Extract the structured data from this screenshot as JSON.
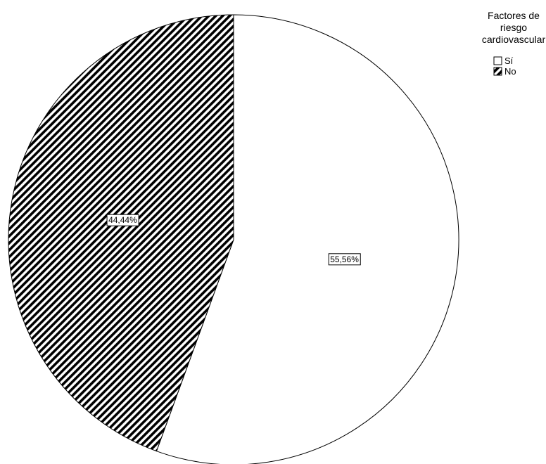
{
  "chart_data": {
    "type": "pie",
    "legend": {
      "title_lines": [
        "Factores de",
        "riesgo",
        "cardiovascular"
      ],
      "position": "top-right"
    },
    "slices": [
      {
        "name": "Sí",
        "value": 55.56,
        "label": "55,56%",
        "fill": "#ffffff",
        "pattern": "none"
      },
      {
        "name": "No",
        "value": 44.44,
        "label": "44,44%",
        "fill": "#000000",
        "pattern": "diagonal-stripes"
      }
    ],
    "start_angle": "12 o'clock",
    "direction": "clockwise"
  }
}
